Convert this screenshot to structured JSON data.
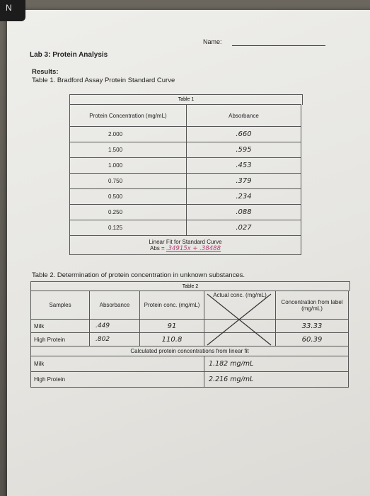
{
  "header": {
    "name_label": "Name:",
    "lab_title": "Lab 3: Protein Analysis",
    "results_label": "Results:",
    "table1_heading": "Table 1. Bradford Assay Protein Standard Curve",
    "table2_heading": "Table 2. Determination of protein concentration in unknown substances."
  },
  "corner_label": "N",
  "table1": {
    "caption": "Table 1",
    "col1_header": "Protein Concentration (mg/mL)",
    "col2_header": "Absorbance",
    "rows": [
      {
        "conc": "2.000",
        "abs": ".660"
      },
      {
        "conc": "1.500",
        "abs": ".595"
      },
      {
        "conc": "1.000",
        "abs": ".453"
      },
      {
        "conc": "0.750",
        "abs": ".379"
      },
      {
        "conc": "0.500",
        "abs": ".234"
      },
      {
        "conc": "0.250",
        "abs": ".088"
      },
      {
        "conc": "0.125",
        "abs": ".027"
      }
    ],
    "linear_fit_label": "Linear Fit for Standard Curve",
    "abs_label": "Abs =",
    "fit_equation": ".34915x + .38488"
  },
  "table2": {
    "caption": "Table 2",
    "headers": [
      "Samples",
      "Absorbance",
      "Protein conc. (mg/mL)",
      "Actual conc. (mg/mL)",
      "Concentration from label (mg/mL)"
    ],
    "rows": [
      {
        "sample": "Milk",
        "absorbance": ".449",
        "protein_conc": "91",
        "label_conc": "33.33"
      },
      {
        "sample": "High Protein",
        "absorbance": ".802",
        "protein_conc": "110.8",
        "label_conc": "60.39"
      }
    ],
    "calculated_label": "Calculated protein concentrations from linear fit",
    "calc_rows": [
      {
        "sample": "Milk",
        "value": "1.182 mg/mL"
      },
      {
        "sample": "High Protein",
        "value": "2.216 mg/mL"
      }
    ]
  }
}
